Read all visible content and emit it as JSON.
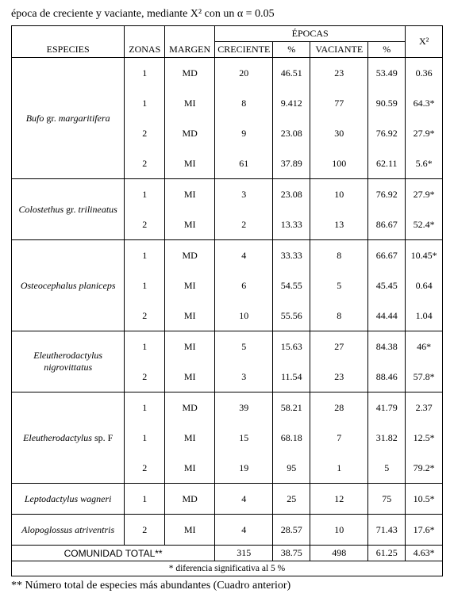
{
  "captions": {
    "top": "época de creciente y vaciante, mediante X² con un α = 0.05",
    "bottom": "** Número total de especies más abundantes (Cuadro anterior)"
  },
  "headers": {
    "especies": "ESPECIES",
    "zonas": "ZONAS",
    "margen": "MARGEN",
    "epocas": "ÉPOCAS",
    "creciente": "CRECIENTE",
    "pct": "%",
    "vaciante": "VACIANTE",
    "x2": "X²"
  },
  "species": [
    {
      "name_html": "Bufo <span class='roman'>gr.</span> margaritifera",
      "rows": [
        {
          "zona": "1",
          "margen": "MD",
          "cre": "20",
          "p1": "46.51",
          "vac": "23",
          "p2": "53.49",
          "x2": "0.36"
        },
        {
          "zona": "1",
          "margen": "MI",
          "cre": "8",
          "p1": "9.412",
          "vac": "77",
          "p2": "90.59",
          "x2": "64.3*"
        },
        {
          "zona": "2",
          "margen": "MD",
          "cre": "9",
          "p1": "23.08",
          "vac": "30",
          "p2": "76.92",
          "x2": "27.9*"
        },
        {
          "zona": "2",
          "margen": "MI",
          "cre": "61",
          "p1": "37.89",
          "vac": "100",
          "p2": "62.11",
          "x2": "5.6*"
        }
      ]
    },
    {
      "name_html": "Colostethus <span class='roman'>gr.</span> trilineatus",
      "rows": [
        {
          "zona": "1",
          "margen": "MI",
          "cre": "3",
          "p1": "23.08",
          "vac": "10",
          "p2": "76.92",
          "x2": "27.9*"
        },
        {
          "zona": "2",
          "margen": "MI",
          "cre": "2",
          "p1": "13.33",
          "vac": "13",
          "p2": "86.67",
          "x2": "52.4*"
        }
      ]
    },
    {
      "name_html": "Osteocephalus planiceps",
      "rows": [
        {
          "zona": "1",
          "margen": "MD",
          "cre": "4",
          "p1": "33.33",
          "vac": "8",
          "p2": "66.67",
          "x2": "10.45*"
        },
        {
          "zona": "1",
          "margen": "MI",
          "cre": "6",
          "p1": "54.55",
          "vac": "5",
          "p2": "45.45",
          "x2": "0.64"
        },
        {
          "zona": "2",
          "margen": "MI",
          "cre": "10",
          "p1": "55.56",
          "vac": "8",
          "p2": "44.44",
          "x2": "1.04"
        }
      ]
    },
    {
      "name_html": "Eleutherodactylus nigrovittatus",
      "rows": [
        {
          "zona": "1",
          "margen": "MI",
          "cre": "5",
          "p1": "15.63",
          "vac": "27",
          "p2": "84.38",
          "x2": "46*"
        },
        {
          "zona": "2",
          "margen": "MI",
          "cre": "3",
          "p1": "11.54",
          "vac": "23",
          "p2": "88.46",
          "x2": "57.8*"
        }
      ]
    },
    {
      "name_html": "Eleutherodactylus <span class='roman'>sp. F</span>",
      "rows": [
        {
          "zona": "1",
          "margen": "MD",
          "cre": "39",
          "p1": "58.21",
          "vac": "28",
          "p2": "41.79",
          "x2": "2.37"
        },
        {
          "zona": "1",
          "margen": "MI",
          "cre": "15",
          "p1": "68.18",
          "vac": "7",
          "p2": "31.82",
          "x2": "12.5*"
        },
        {
          "zona": "2",
          "margen": "MI",
          "cre": "19",
          "p1": "95",
          "vac": "1",
          "p2": "5",
          "x2": "79.2*"
        }
      ]
    },
    {
      "name_html": "Leptodactylus wagneri",
      "rows": [
        {
          "zona": "1",
          "margen": "MD",
          "cre": "4",
          "p1": "25",
          "vac": "12",
          "p2": "75",
          "x2": "10.5*"
        }
      ]
    },
    {
      "name_html": "Alopoglossus atriventris",
      "rows": [
        {
          "zona": "2",
          "margen": "MI",
          "cre": "4",
          "p1": "28.57",
          "vac": "10",
          "p2": "71.43",
          "x2": "17.6*"
        }
      ]
    }
  ],
  "totals": {
    "label": "COMUNIDAD TOTAL**",
    "cre": "315",
    "p1": "38.75",
    "vac": "498",
    "p2": "61.25",
    "x2": "4.63*"
  },
  "footnote": "* diferencia significativa al 5 %"
}
